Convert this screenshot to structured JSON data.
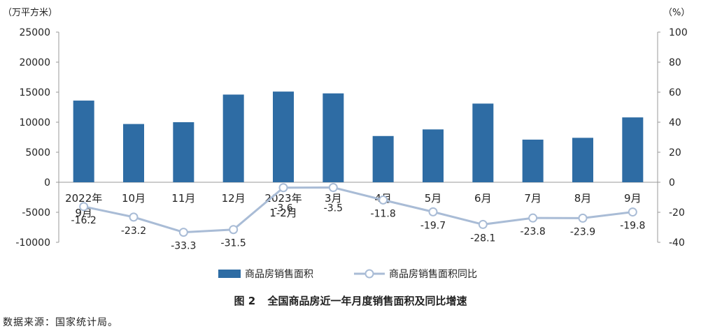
{
  "chart_data": {
    "type": "bar+line",
    "y_left_label": "（万平方米）",
    "y_right_label": "（%）",
    "y_left_ticks": [
      "25000",
      "20000",
      "15000",
      "10000",
      "5000",
      "0",
      "-5000",
      "-10000"
    ],
    "y_right_ticks": [
      "100",
      "80",
      "60",
      "40",
      "20",
      "0",
      "-20",
      "-40"
    ],
    "y_left_range": [
      -10000,
      25000
    ],
    "y_right_range": [
      -40,
      100
    ],
    "categories": [
      [
        "2022年",
        "9月"
      ],
      [
        "10月"
      ],
      [
        "11月"
      ],
      [
        "12月"
      ],
      [
        "2023年",
        "1-2月"
      ],
      [
        "3月"
      ],
      [
        "4月"
      ],
      [
        "5月"
      ],
      [
        "6月"
      ],
      [
        "7月"
      ],
      [
        "8月"
      ],
      [
        "9月"
      ]
    ],
    "series": [
      {
        "name": "商品房销售面积",
        "kind": "bar",
        "color": "#2e6ca4",
        "values": [
          13600,
          9700,
          10000,
          14600,
          15100,
          14800,
          7700,
          8800,
          13100,
          7100,
          7400,
          10800
        ]
      },
      {
        "name": "商品房销售面积同比",
        "kind": "line",
        "color": "#a9bcd6",
        "values": [
          -16.2,
          -23.2,
          -33.3,
          -31.5,
          -3.6,
          -3.5,
          -11.8,
          -19.7,
          -28.1,
          -23.8,
          -23.9,
          -19.8
        ],
        "labels": [
          "-16.2",
          "-23.2",
          "-33.3",
          "-31.5",
          "-3.6",
          "-3.5",
          "-11.8",
          "-19.7",
          "-28.1",
          "-23.8",
          "-23.9",
          "-19.8"
        ]
      }
    ],
    "legend_position": "bottom",
    "grid": false
  },
  "caption": {
    "figure_no": "图 2",
    "title": "全国商品房近一年月度销售面积及同比增速"
  },
  "source_note": "数据来源：国家统计局。"
}
